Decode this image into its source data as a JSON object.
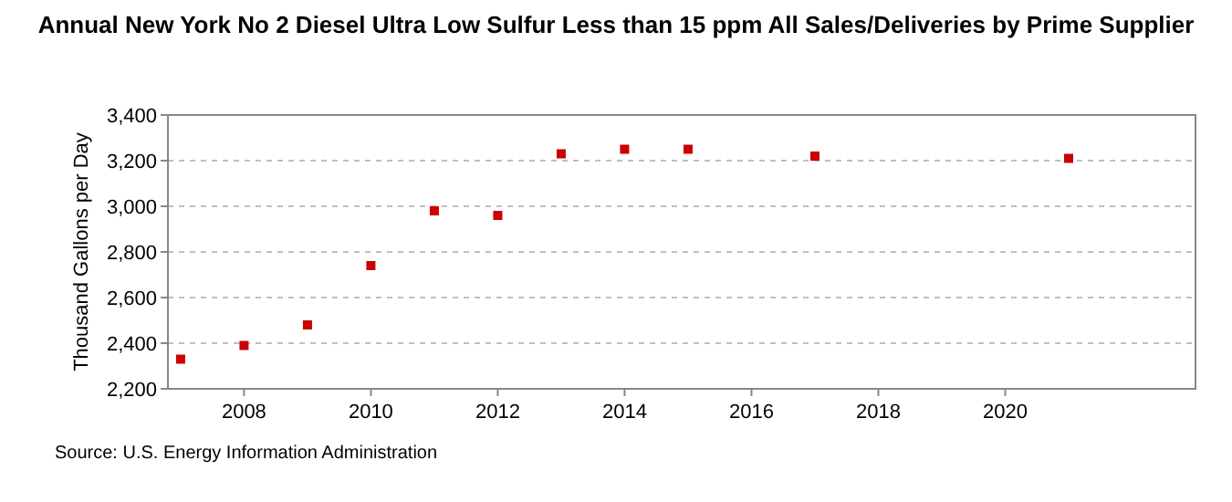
{
  "chart_data": {
    "type": "scatter",
    "title": "Annual New York No 2 Diesel Ultra Low Sulfur Less than 15 ppm All Sales/Deliveries by Prime Supplier",
    "ylabel": "Thousand Gallons per Day",
    "annotations": [
      "Source: U.S. Energy Information Administration"
    ],
    "x": [
      2007,
      2008,
      2009,
      2010,
      2011,
      2012,
      2013,
      2014,
      2015,
      2017,
      2021
    ],
    "series": [
      {
        "color": "#cc0000",
        "values": [
          2330,
          2390,
          2480,
          2740,
          2980,
          2960,
          3230,
          3250,
          3250,
          3220,
          3210
        ]
      }
    ],
    "xlim": [
      2006.8,
      2023
    ],
    "xticks": [
      2008,
      2010,
      2012,
      2014,
      2016,
      2018,
      2020
    ],
    "ylim": [
      2200,
      3400
    ],
    "yticks": [
      {
        "value": 2200,
        "label": "2,200"
      },
      {
        "value": 2400,
        "label": "2,400"
      },
      {
        "value": 2600,
        "label": "2,600"
      },
      {
        "value": 2800,
        "label": "2,800"
      },
      {
        "value": 3000,
        "label": "3,000"
      },
      {
        "value": 3200,
        "label": "3,200"
      },
      {
        "value": 3400,
        "label": "3,400"
      }
    ],
    "grid": "y",
    "marker": "square"
  }
}
